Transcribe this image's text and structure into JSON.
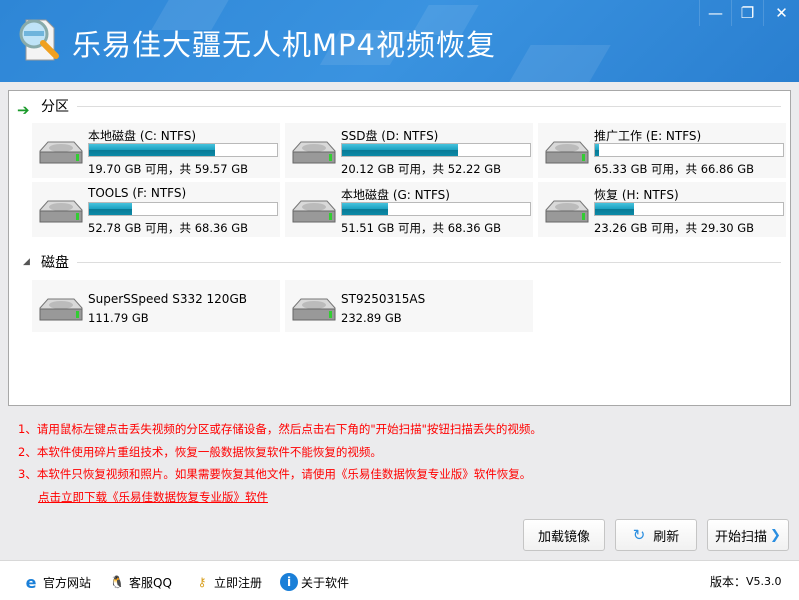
{
  "window": {
    "title": "乐易佳大疆无人机MP4视频恢复",
    "minimize_icon": "minimize-icon",
    "restore_icon": "restore-icon",
    "close_icon": "close-icon"
  },
  "partitions_section": {
    "label": "分区",
    "items": [
      {
        "name": "本地磁盘 (C: NTFS)",
        "size_text": "19.70 GB 可用，共 59.57 GB",
        "used_fraction": 0.67
      },
      {
        "name": "SSD盘 (D: NTFS)",
        "size_text": "20.12 GB 可用，共 52.22 GB",
        "used_fraction": 0.615
      },
      {
        "name": "推广工作 (E: NTFS)",
        "size_text": "65.33 GB 可用，共 66.86 GB",
        "used_fraction": 0.023
      },
      {
        "name": "TOOLS (F: NTFS)",
        "size_text": "52.78 GB 可用，共 68.36 GB",
        "used_fraction": 0.228
      },
      {
        "name": "本地磁盘 (G: NTFS)",
        "size_text": "51.51 GB 可用，共 68.36 GB",
        "used_fraction": 0.246
      },
      {
        "name": "恢复 (H: NTFS)",
        "size_text": "23.26 GB 可用，共 29.30 GB",
        "used_fraction": 0.206
      }
    ]
  },
  "disks_section": {
    "label": "磁盘",
    "items": [
      {
        "name": "SuperSSpeed S332 120GB",
        "size_text": "111.79 GB"
      },
      {
        "name": "ST9250315AS",
        "size_text": "232.89 GB"
      }
    ]
  },
  "notes": [
    "1、请用鼠标左键点击丢失视频的分区或存储设备，然后点击右下角的\"开始扫描\"按钮扫描丢失的视频。",
    "2、本软件使用碎片重组技术，恢复一般数据恢复软件不能恢复的视频。",
    "3、本软件只恢复视频和照片。如果需要恢复其他文件，请使用《乐易佳数据恢复专业版》软件恢复。"
  ],
  "download_link": "点击立即下载《乐易佳数据恢复专业版》软件",
  "buttons": {
    "load_image": "加载镜像",
    "refresh": "刷新",
    "start_scan": "开始扫描"
  },
  "footer": {
    "website": "官方网站",
    "qq": "客服QQ",
    "register": "立即注册",
    "about": "关于软件",
    "version_label": "版本：",
    "version": "V5.3.0"
  },
  "colors": {
    "title_bar": "#2e86d6",
    "notes_text": "#ff0000",
    "bar_fill": "#1aa0c0"
  }
}
